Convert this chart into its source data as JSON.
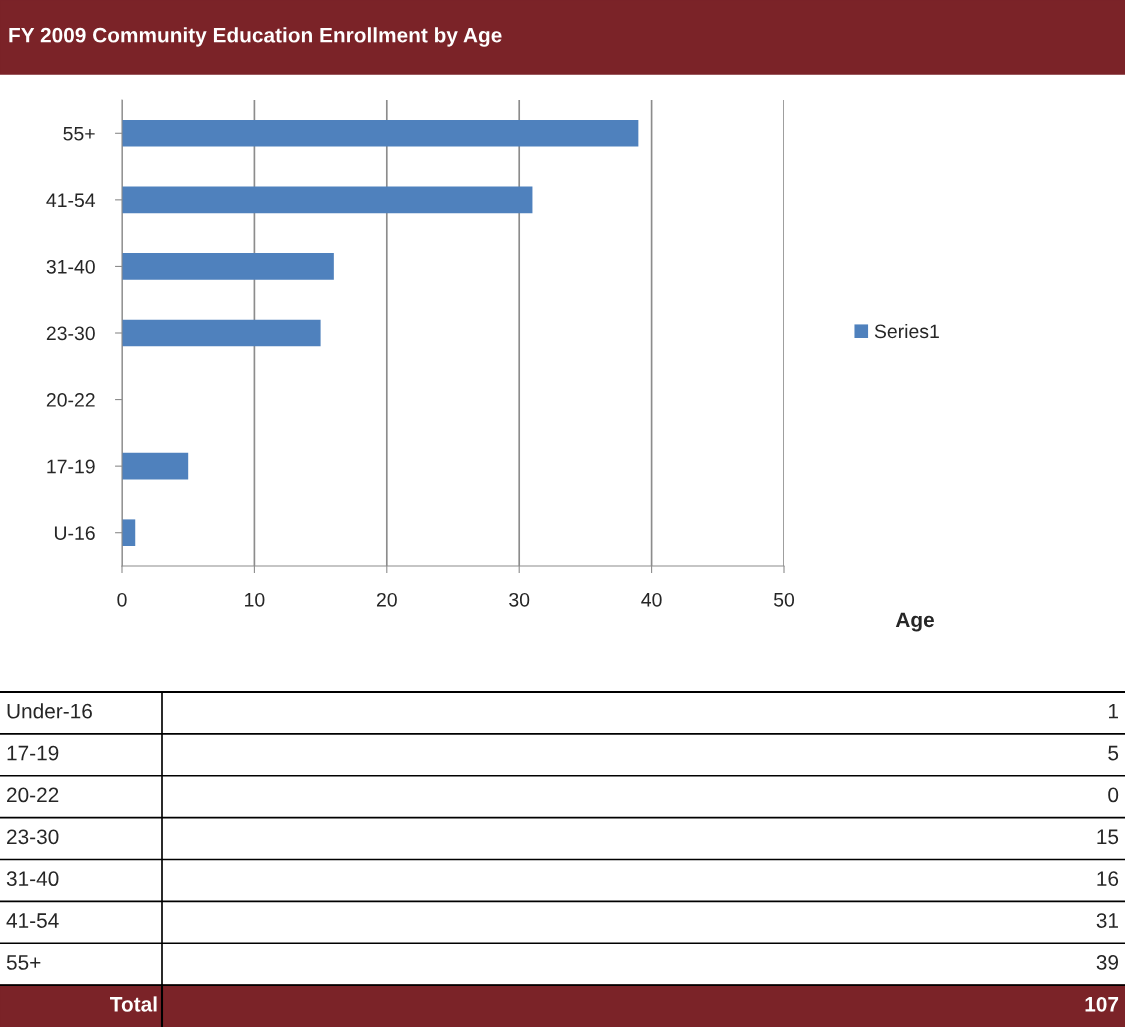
{
  "chart_data": [
    {
      "type": "bar",
      "title": "FY 2009 Community Education Enrollment by Age",
      "xlabel": "Age",
      "orientation": "horizontal",
      "categories": [
        "55+",
        "41-54",
        "31-40",
        "23-30",
        "20-22",
        "17-19",
        "U-16"
      ],
      "series": [
        {
          "name": "Series1",
          "color": "#4f81bd",
          "values": [
            39,
            31,
            16,
            15,
            0,
            5,
            1
          ]
        }
      ],
      "xlim": [
        0,
        50
      ],
      "xticks": [
        0,
        10,
        20,
        30,
        40,
        50
      ],
      "grid": "x",
      "legend": "right"
    },
    {
      "type": "other",
      "categories": [
        "Under-16",
        "17-19",
        "20-22",
        "23-30",
        "31-40",
        "41-54",
        "55+"
      ],
      "values": [
        1,
        5,
        0,
        15,
        16,
        31,
        39
      ],
      "data_labels": true,
      "annotations": [
        "Total"
      ],
      "totals": [
        "107"
      ],
      "color": "#7b2328"
    }
  ]
}
